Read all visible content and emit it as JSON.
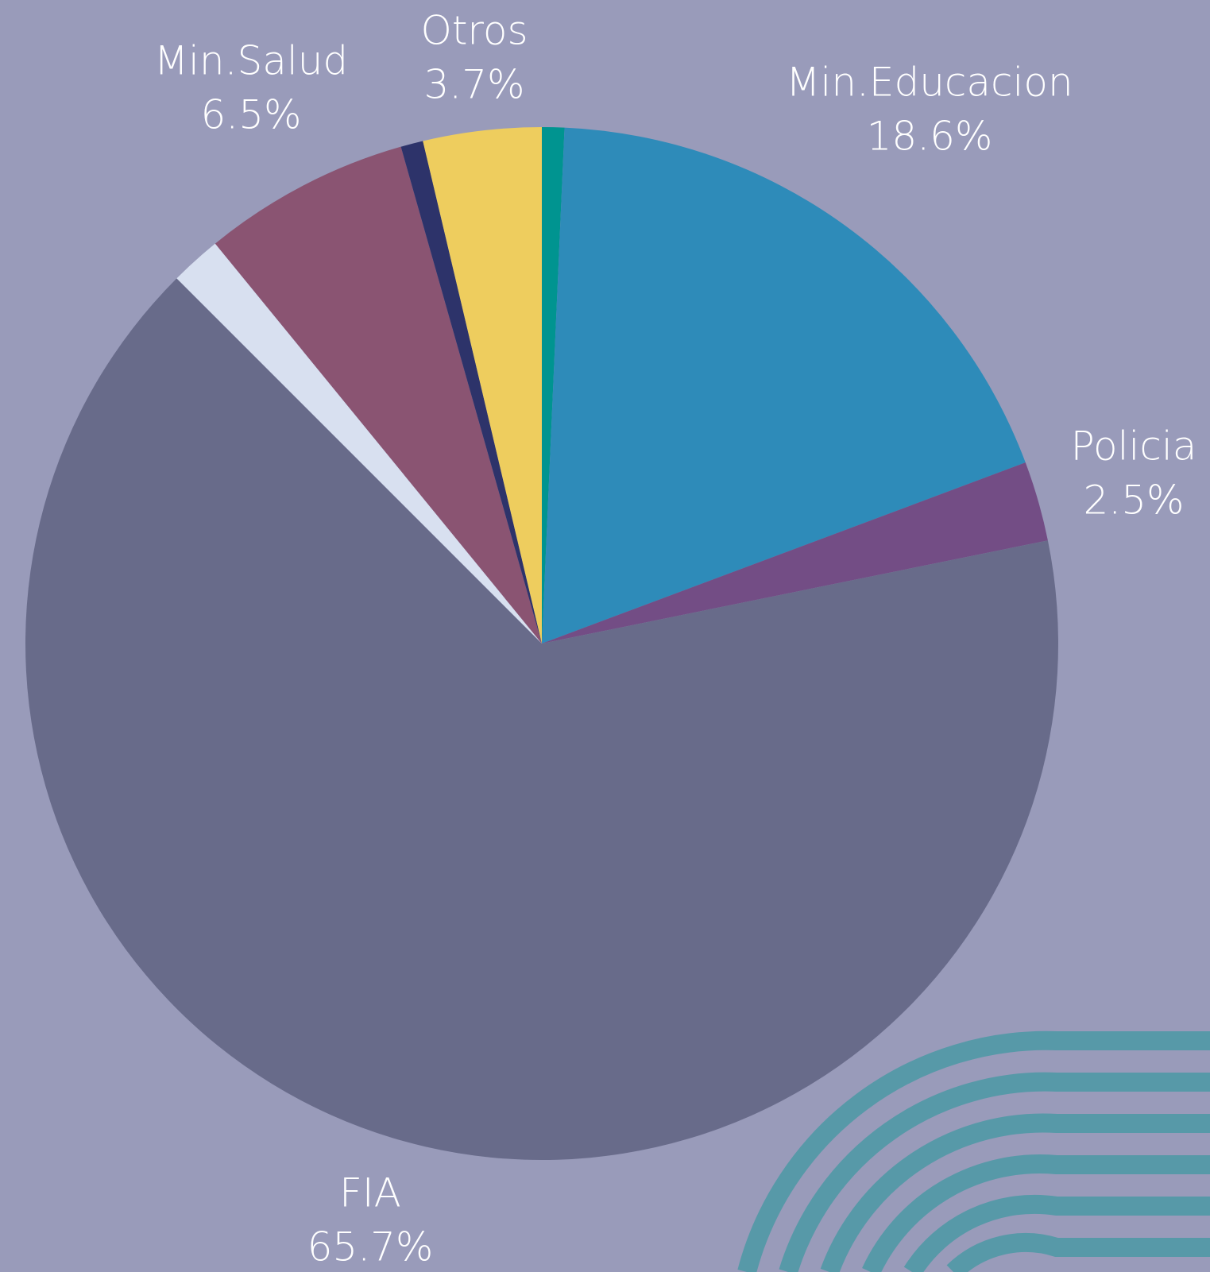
{
  "chart_data": {
    "type": "pie",
    "categories": [
      null,
      "Min.Educacion",
      "Policia",
      "FIA",
      null,
      "Min.Salud",
      null,
      "Otros"
    ],
    "values": [
      0.7,
      18.6,
      2.5,
      65.7,
      1.6,
      6.5,
      0.7,
      3.7
    ],
    "value_labels": [
      null,
      "18.6%",
      "2.5%",
      "65.7%",
      null,
      "6.5%",
      null,
      "3.7%"
    ],
    "colors": [
      "#009490",
      "#2e8bb9",
      "#734d85",
      "#686b8a",
      "#d8e0f0",
      "#8a5472",
      "#2d336a",
      "#eecd5e"
    ]
  }
}
